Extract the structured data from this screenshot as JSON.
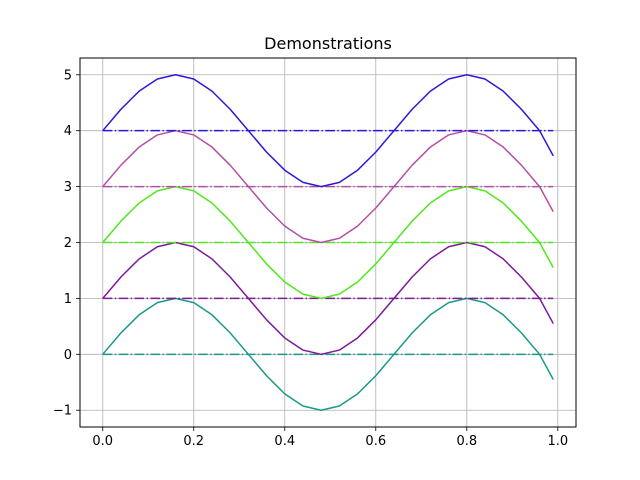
{
  "chart_data": {
    "type": "line",
    "title": "Demonstrations",
    "xlabel": "",
    "ylabel": "",
    "xlim": [
      -0.05,
      1.04
    ],
    "ylim": [
      -1.3,
      5.3
    ],
    "xticks": [
      0.0,
      0.2,
      0.4,
      0.6,
      0.8,
      1.0
    ],
    "xtick_labels": [
      "0.0",
      "0.2",
      "0.4",
      "0.6",
      "0.8",
      "1.0"
    ],
    "yticks": [
      -1,
      0,
      1,
      2,
      3,
      4,
      5
    ],
    "ytick_labels": [
      "−1",
      "0",
      "1",
      "2",
      "3",
      "4",
      "5"
    ],
    "grid": true,
    "legend": "none",
    "x": [
      0.0,
      0.04,
      0.08,
      0.12,
      0.16,
      0.2,
      0.24,
      0.28,
      0.32,
      0.36,
      0.4,
      0.44,
      0.48,
      0.52,
      0.56,
      0.6,
      0.64,
      0.68,
      0.72,
      0.76,
      0.8,
      0.84,
      0.88,
      0.92,
      0.96,
      0.99
    ],
    "series": [
      {
        "style": "solid",
        "color": "#1a9988",
        "values": [
          0.0,
          0.383,
          0.707,
          0.924,
          1.0,
          0.924,
          0.707,
          0.383,
          0.0,
          -0.383,
          -0.707,
          -0.924,
          -1.0,
          -0.924,
          -0.707,
          -0.383,
          0.0,
          0.383,
          0.707,
          0.924,
          1.0,
          0.924,
          0.707,
          0.383,
          0.0,
          -0.45
        ]
      },
      {
        "style": "dashdot",
        "color": "#1a9988",
        "values": [
          0,
          0,
          0,
          0,
          0,
          0,
          0,
          0,
          0,
          0,
          0,
          0,
          0,
          0,
          0,
          0,
          0,
          0,
          0,
          0,
          0,
          0,
          0,
          0,
          0,
          0
        ]
      },
      {
        "style": "solid",
        "color": "#7e1a99",
        "values": [
          1.0,
          1.383,
          1.707,
          1.924,
          2.0,
          1.924,
          1.707,
          1.383,
          1.0,
          0.617,
          0.293,
          0.076,
          0.0,
          0.076,
          0.293,
          0.617,
          1.0,
          1.383,
          1.707,
          1.924,
          2.0,
          1.924,
          1.707,
          1.383,
          1.0,
          0.55
        ]
      },
      {
        "style": "dashdot",
        "color": "#7e1a99",
        "values": [
          1,
          1,
          1,
          1,
          1,
          1,
          1,
          1,
          1,
          1,
          1,
          1,
          1,
          1,
          1,
          1,
          1,
          1,
          1,
          1,
          1,
          1,
          1,
          1,
          1,
          1
        ]
      },
      {
        "style": "solid",
        "color": "#50e81a",
        "values": [
          2.0,
          2.383,
          2.707,
          2.924,
          3.0,
          2.924,
          2.707,
          2.383,
          2.0,
          1.617,
          1.293,
          1.076,
          1.0,
          1.076,
          1.293,
          1.617,
          2.0,
          2.383,
          2.707,
          2.924,
          3.0,
          2.924,
          2.707,
          2.383,
          2.0,
          1.55
        ]
      },
      {
        "style": "dashdot",
        "color": "#50e81a",
        "values": [
          2,
          2,
          2,
          2,
          2,
          2,
          2,
          2,
          2,
          2,
          2,
          2,
          2,
          2,
          2,
          2,
          2,
          2,
          2,
          2,
          2,
          2,
          2,
          2,
          2,
          2
        ]
      },
      {
        "style": "solid",
        "color": "#b44fa6",
        "values": [
          3.0,
          3.383,
          3.707,
          3.924,
          4.0,
          3.924,
          3.707,
          3.383,
          3.0,
          2.617,
          2.293,
          2.076,
          2.0,
          2.076,
          2.293,
          2.617,
          3.0,
          3.383,
          3.707,
          3.924,
          4.0,
          3.924,
          3.707,
          3.383,
          3.0,
          2.55
        ]
      },
      {
        "style": "dashdot",
        "color": "#b44fa6",
        "values": [
          3,
          3,
          3,
          3,
          3,
          3,
          3,
          3,
          3,
          3,
          3,
          3,
          3,
          3,
          3,
          3,
          3,
          3,
          3,
          3,
          3,
          3,
          3,
          3,
          3,
          3
        ]
      },
      {
        "style": "solid",
        "color": "#2a1ad8",
        "values": [
          4.0,
          4.383,
          4.707,
          4.924,
          5.0,
          4.924,
          4.707,
          4.383,
          4.0,
          3.617,
          3.293,
          3.076,
          3.0,
          3.076,
          3.293,
          3.617,
          4.0,
          4.383,
          4.707,
          4.924,
          5.0,
          4.924,
          4.707,
          4.383,
          4.0,
          3.55
        ]
      },
      {
        "style": "dashdot",
        "color": "#2a1ad8",
        "values": [
          4,
          4,
          4,
          4,
          4,
          4,
          4,
          4,
          4,
          4,
          4,
          4,
          4,
          4,
          4,
          4,
          4,
          4,
          4,
          4,
          4,
          4,
          4,
          4,
          4,
          4
        ]
      }
    ]
  }
}
